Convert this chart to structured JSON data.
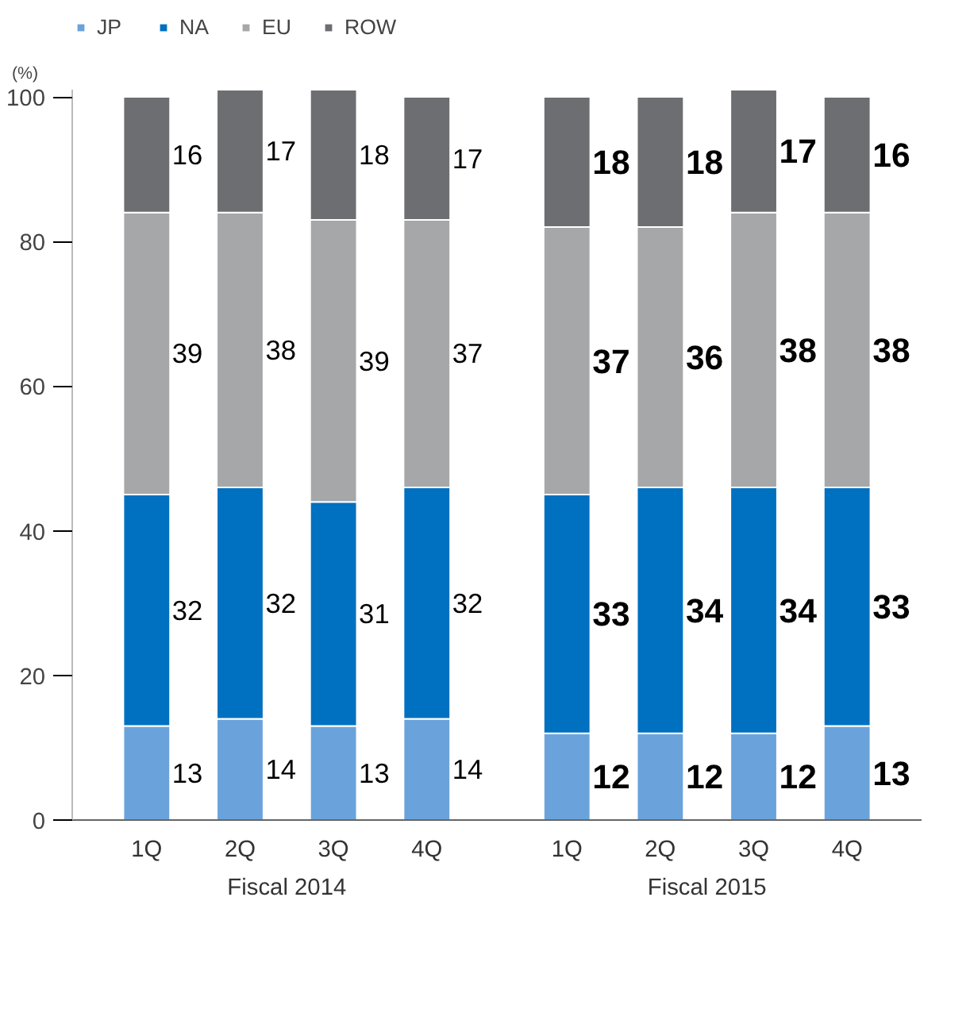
{
  "chart_data": {
    "type": "bar",
    "stacked": true,
    "ylabel": "(%)",
    "categories": [
      "1Q",
      "2Q",
      "3Q",
      "4Q",
      "1Q",
      "2Q",
      "3Q",
      "4Q"
    ],
    "series": [
      {
        "name": "JP",
        "color": "#6aa3db",
        "values": [
          13,
          14,
          13,
          14,
          12,
          12,
          12,
          13
        ]
      },
      {
        "name": "NA",
        "color": "#0070c0",
        "values": [
          32,
          32,
          31,
          32,
          33,
          34,
          34,
          33
        ]
      },
      {
        "name": "EU",
        "color": "#a6a7a9",
        "values": [
          39,
          38,
          39,
          37,
          37,
          36,
          38,
          38
        ]
      },
      {
        "name": "ROW",
        "color": "#6d6e71",
        "values": [
          16,
          17,
          18,
          17,
          18,
          18,
          17,
          16
        ]
      }
    ],
    "ylim": [
      0,
      101
    ],
    "yticks": [
      0,
      20,
      40,
      60,
      80,
      100
    ],
    "grid": false,
    "legend": "top left",
    "data_labels": true,
    "annotations": [
      "Fiscal 2014",
      "Fiscal 2015"
    ]
  }
}
